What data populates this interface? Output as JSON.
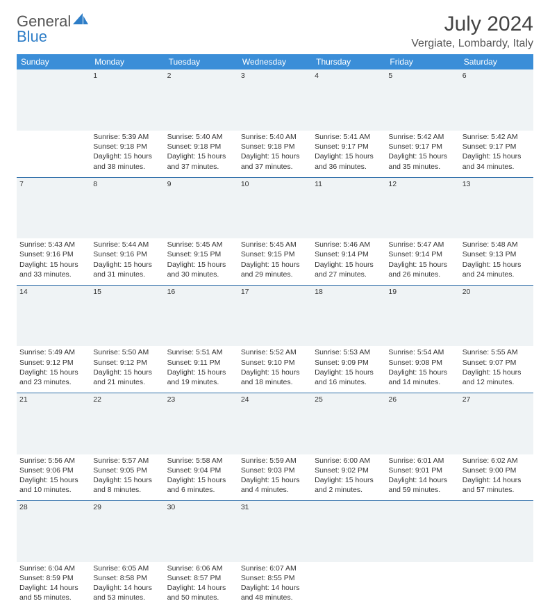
{
  "logo": {
    "text_a": "General",
    "text_b": "Blue"
  },
  "title": "July 2024",
  "location": "Vergiate, Lombardy, Italy",
  "colors": {
    "header_bg": "#3b8ed8",
    "header_text": "#ffffff",
    "divider": "#2d6da8",
    "daynum_bg": "#eff3f5",
    "body_text": "#333333",
    "logo_blue": "#2d7dc7"
  },
  "day_headers": [
    "Sunday",
    "Monday",
    "Tuesday",
    "Wednesday",
    "Thursday",
    "Friday",
    "Saturday"
  ],
  "weeks": [
    {
      "nums": [
        "",
        "1",
        "2",
        "3",
        "4",
        "5",
        "6"
      ],
      "cells": [
        null,
        {
          "sunrise": "Sunrise: 5:39 AM",
          "sunset": "Sunset: 9:18 PM",
          "d1": "Daylight: 15 hours",
          "d2": "and 38 minutes."
        },
        {
          "sunrise": "Sunrise: 5:40 AM",
          "sunset": "Sunset: 9:18 PM",
          "d1": "Daylight: 15 hours",
          "d2": "and 37 minutes."
        },
        {
          "sunrise": "Sunrise: 5:40 AM",
          "sunset": "Sunset: 9:18 PM",
          "d1": "Daylight: 15 hours",
          "d2": "and 37 minutes."
        },
        {
          "sunrise": "Sunrise: 5:41 AM",
          "sunset": "Sunset: 9:17 PM",
          "d1": "Daylight: 15 hours",
          "d2": "and 36 minutes."
        },
        {
          "sunrise": "Sunrise: 5:42 AM",
          "sunset": "Sunset: 9:17 PM",
          "d1": "Daylight: 15 hours",
          "d2": "and 35 minutes."
        },
        {
          "sunrise": "Sunrise: 5:42 AM",
          "sunset": "Sunset: 9:17 PM",
          "d1": "Daylight: 15 hours",
          "d2": "and 34 minutes."
        }
      ]
    },
    {
      "nums": [
        "7",
        "8",
        "9",
        "10",
        "11",
        "12",
        "13"
      ],
      "cells": [
        {
          "sunrise": "Sunrise: 5:43 AM",
          "sunset": "Sunset: 9:16 PM",
          "d1": "Daylight: 15 hours",
          "d2": "and 33 minutes."
        },
        {
          "sunrise": "Sunrise: 5:44 AM",
          "sunset": "Sunset: 9:16 PM",
          "d1": "Daylight: 15 hours",
          "d2": "and 31 minutes."
        },
        {
          "sunrise": "Sunrise: 5:45 AM",
          "sunset": "Sunset: 9:15 PM",
          "d1": "Daylight: 15 hours",
          "d2": "and 30 minutes."
        },
        {
          "sunrise": "Sunrise: 5:45 AM",
          "sunset": "Sunset: 9:15 PM",
          "d1": "Daylight: 15 hours",
          "d2": "and 29 minutes."
        },
        {
          "sunrise": "Sunrise: 5:46 AM",
          "sunset": "Sunset: 9:14 PM",
          "d1": "Daylight: 15 hours",
          "d2": "and 27 minutes."
        },
        {
          "sunrise": "Sunrise: 5:47 AM",
          "sunset": "Sunset: 9:14 PM",
          "d1": "Daylight: 15 hours",
          "d2": "and 26 minutes."
        },
        {
          "sunrise": "Sunrise: 5:48 AM",
          "sunset": "Sunset: 9:13 PM",
          "d1": "Daylight: 15 hours",
          "d2": "and 24 minutes."
        }
      ]
    },
    {
      "nums": [
        "14",
        "15",
        "16",
        "17",
        "18",
        "19",
        "20"
      ],
      "cells": [
        {
          "sunrise": "Sunrise: 5:49 AM",
          "sunset": "Sunset: 9:12 PM",
          "d1": "Daylight: 15 hours",
          "d2": "and 23 minutes."
        },
        {
          "sunrise": "Sunrise: 5:50 AM",
          "sunset": "Sunset: 9:12 PM",
          "d1": "Daylight: 15 hours",
          "d2": "and 21 minutes."
        },
        {
          "sunrise": "Sunrise: 5:51 AM",
          "sunset": "Sunset: 9:11 PM",
          "d1": "Daylight: 15 hours",
          "d2": "and 19 minutes."
        },
        {
          "sunrise": "Sunrise: 5:52 AM",
          "sunset": "Sunset: 9:10 PM",
          "d1": "Daylight: 15 hours",
          "d2": "and 18 minutes."
        },
        {
          "sunrise": "Sunrise: 5:53 AM",
          "sunset": "Sunset: 9:09 PM",
          "d1": "Daylight: 15 hours",
          "d2": "and 16 minutes."
        },
        {
          "sunrise": "Sunrise: 5:54 AM",
          "sunset": "Sunset: 9:08 PM",
          "d1": "Daylight: 15 hours",
          "d2": "and 14 minutes."
        },
        {
          "sunrise": "Sunrise: 5:55 AM",
          "sunset": "Sunset: 9:07 PM",
          "d1": "Daylight: 15 hours",
          "d2": "and 12 minutes."
        }
      ]
    },
    {
      "nums": [
        "21",
        "22",
        "23",
        "24",
        "25",
        "26",
        "27"
      ],
      "cells": [
        {
          "sunrise": "Sunrise: 5:56 AM",
          "sunset": "Sunset: 9:06 PM",
          "d1": "Daylight: 15 hours",
          "d2": "and 10 minutes."
        },
        {
          "sunrise": "Sunrise: 5:57 AM",
          "sunset": "Sunset: 9:05 PM",
          "d1": "Daylight: 15 hours",
          "d2": "and 8 minutes."
        },
        {
          "sunrise": "Sunrise: 5:58 AM",
          "sunset": "Sunset: 9:04 PM",
          "d1": "Daylight: 15 hours",
          "d2": "and 6 minutes."
        },
        {
          "sunrise": "Sunrise: 5:59 AM",
          "sunset": "Sunset: 9:03 PM",
          "d1": "Daylight: 15 hours",
          "d2": "and 4 minutes."
        },
        {
          "sunrise": "Sunrise: 6:00 AM",
          "sunset": "Sunset: 9:02 PM",
          "d1": "Daylight: 15 hours",
          "d2": "and 2 minutes."
        },
        {
          "sunrise": "Sunrise: 6:01 AM",
          "sunset": "Sunset: 9:01 PM",
          "d1": "Daylight: 14 hours",
          "d2": "and 59 minutes."
        },
        {
          "sunrise": "Sunrise: 6:02 AM",
          "sunset": "Sunset: 9:00 PM",
          "d1": "Daylight: 14 hours",
          "d2": "and 57 minutes."
        }
      ]
    },
    {
      "nums": [
        "28",
        "29",
        "30",
        "31",
        "",
        "",
        ""
      ],
      "cells": [
        {
          "sunrise": "Sunrise: 6:04 AM",
          "sunset": "Sunset: 8:59 PM",
          "d1": "Daylight: 14 hours",
          "d2": "and 55 minutes."
        },
        {
          "sunrise": "Sunrise: 6:05 AM",
          "sunset": "Sunset: 8:58 PM",
          "d1": "Daylight: 14 hours",
          "d2": "and 53 minutes."
        },
        {
          "sunrise": "Sunrise: 6:06 AM",
          "sunset": "Sunset: 8:57 PM",
          "d1": "Daylight: 14 hours",
          "d2": "and 50 minutes."
        },
        {
          "sunrise": "Sunrise: 6:07 AM",
          "sunset": "Sunset: 8:55 PM",
          "d1": "Daylight: 14 hours",
          "d2": "and 48 minutes."
        },
        null,
        null,
        null
      ]
    }
  ]
}
